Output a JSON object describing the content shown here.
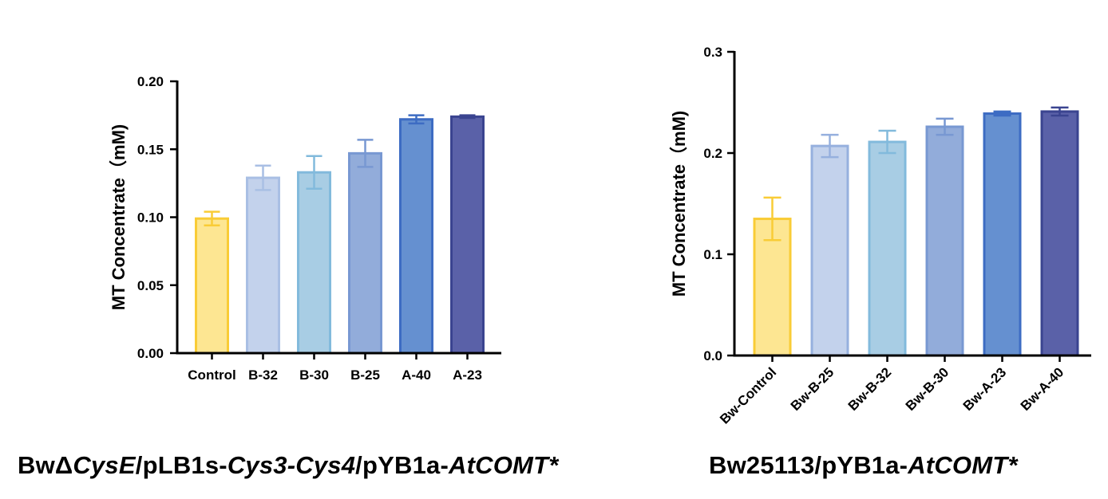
{
  "chart_data": [
    {
      "type": "bar",
      "title": "",
      "caption": {
        "parts": [
          {
            "text": "BwΔ",
            "italic": false
          },
          {
            "text": "CysE",
            "italic": true
          },
          {
            "text": "/pLB1s-",
            "italic": false
          },
          {
            "text": "Cys3-Cys4",
            "italic": true
          },
          {
            "text": "/pYB1a-",
            "italic": false
          },
          {
            "text": "AtCOMT*",
            "italic": true
          }
        ]
      },
      "xlabel": "",
      "ylabel": "MT Concentrate（mM)",
      "ylim": [
        0,
        0.2
      ],
      "yticks": [
        0.0,
        0.05,
        0.1,
        0.15,
        0.2
      ],
      "ytick_labels": [
        "0.00",
        "0.05",
        "0.10",
        "0.15",
        "0.20"
      ],
      "grid": false,
      "rotated_xticks": false,
      "categories": [
        "Control",
        "B-32",
        "B-30",
        "B-25",
        "A-40",
        "A-23"
      ],
      "values": [
        0.099,
        0.129,
        0.133,
        0.147,
        0.172,
        0.174
      ],
      "errors": [
        0.005,
        0.009,
        0.012,
        0.01,
        0.003,
        0.001
      ],
      "fill_colors": [
        "#FDE692",
        "#C3D2EC",
        "#A8CDE4",
        "#92ACDA",
        "#6590D0",
        "#5A61A8"
      ],
      "edge_colors": [
        "#F9CC36",
        "#A9BFE4",
        "#82BADC",
        "#7898D2",
        "#3D6CC3",
        "#3A4490"
      ]
    },
    {
      "type": "bar",
      "title": "",
      "caption": {
        "parts": [
          {
            "text": "Bw25113/pYB1a-",
            "italic": false
          },
          {
            "text": "AtCOMT*",
            "italic": true
          }
        ]
      },
      "xlabel": "",
      "ylabel": "MT Concentrate（mM)",
      "ylim": [
        0,
        0.3
      ],
      "yticks": [
        0.0,
        0.1,
        0.2,
        0.3
      ],
      "ytick_labels": [
        "0.0",
        "0.1",
        "0.2",
        "0.3"
      ],
      "grid": false,
      "rotated_xticks": true,
      "categories": [
        "Bw-Control",
        "Bw-B-25",
        "Bw-B-32",
        "Bw-B-30",
        "Bw-A-23",
        "Bw-A-40"
      ],
      "values": [
        0.135,
        0.207,
        0.211,
        0.226,
        0.239,
        0.241
      ],
      "errors": [
        0.021,
        0.011,
        0.011,
        0.008,
        0.002,
        0.004
      ],
      "fill_colors": [
        "#FDE692",
        "#C3D2EC",
        "#A8CDE4",
        "#92ACDA",
        "#6590D0",
        "#5A61A8"
      ],
      "edge_colors": [
        "#F9CC36",
        "#96B0DE",
        "#82BADC",
        "#7898D2",
        "#3D6CC3",
        "#3A4490"
      ]
    }
  ]
}
